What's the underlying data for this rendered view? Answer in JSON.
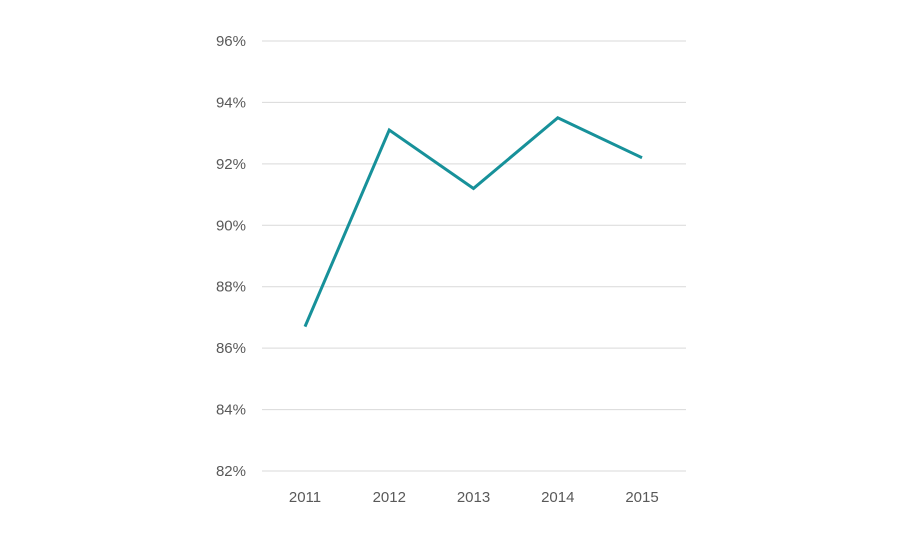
{
  "chart_data": {
    "type": "line",
    "title": "",
    "xlabel": "",
    "ylabel": "",
    "x": [
      "2011",
      "2012",
      "2013",
      "2014",
      "2015"
    ],
    "series": [
      {
        "values": [
          86.7,
          93.1,
          91.2,
          93.5,
          92.2
        ],
        "color": "#17919a"
      }
    ],
    "ylim": [
      82,
      96
    ],
    "yticks": [
      82,
      84,
      86,
      88,
      90,
      92,
      94,
      96
    ],
    "ytick_labels": [
      "82%",
      "84%",
      "86%",
      "88%",
      "90%",
      "92%",
      "94%",
      "96%"
    ],
    "y_unit": "%",
    "grid": true,
    "legend": "none",
    "colors": {
      "grid": "#d9d9d9",
      "tick_text": "#595959"
    }
  }
}
